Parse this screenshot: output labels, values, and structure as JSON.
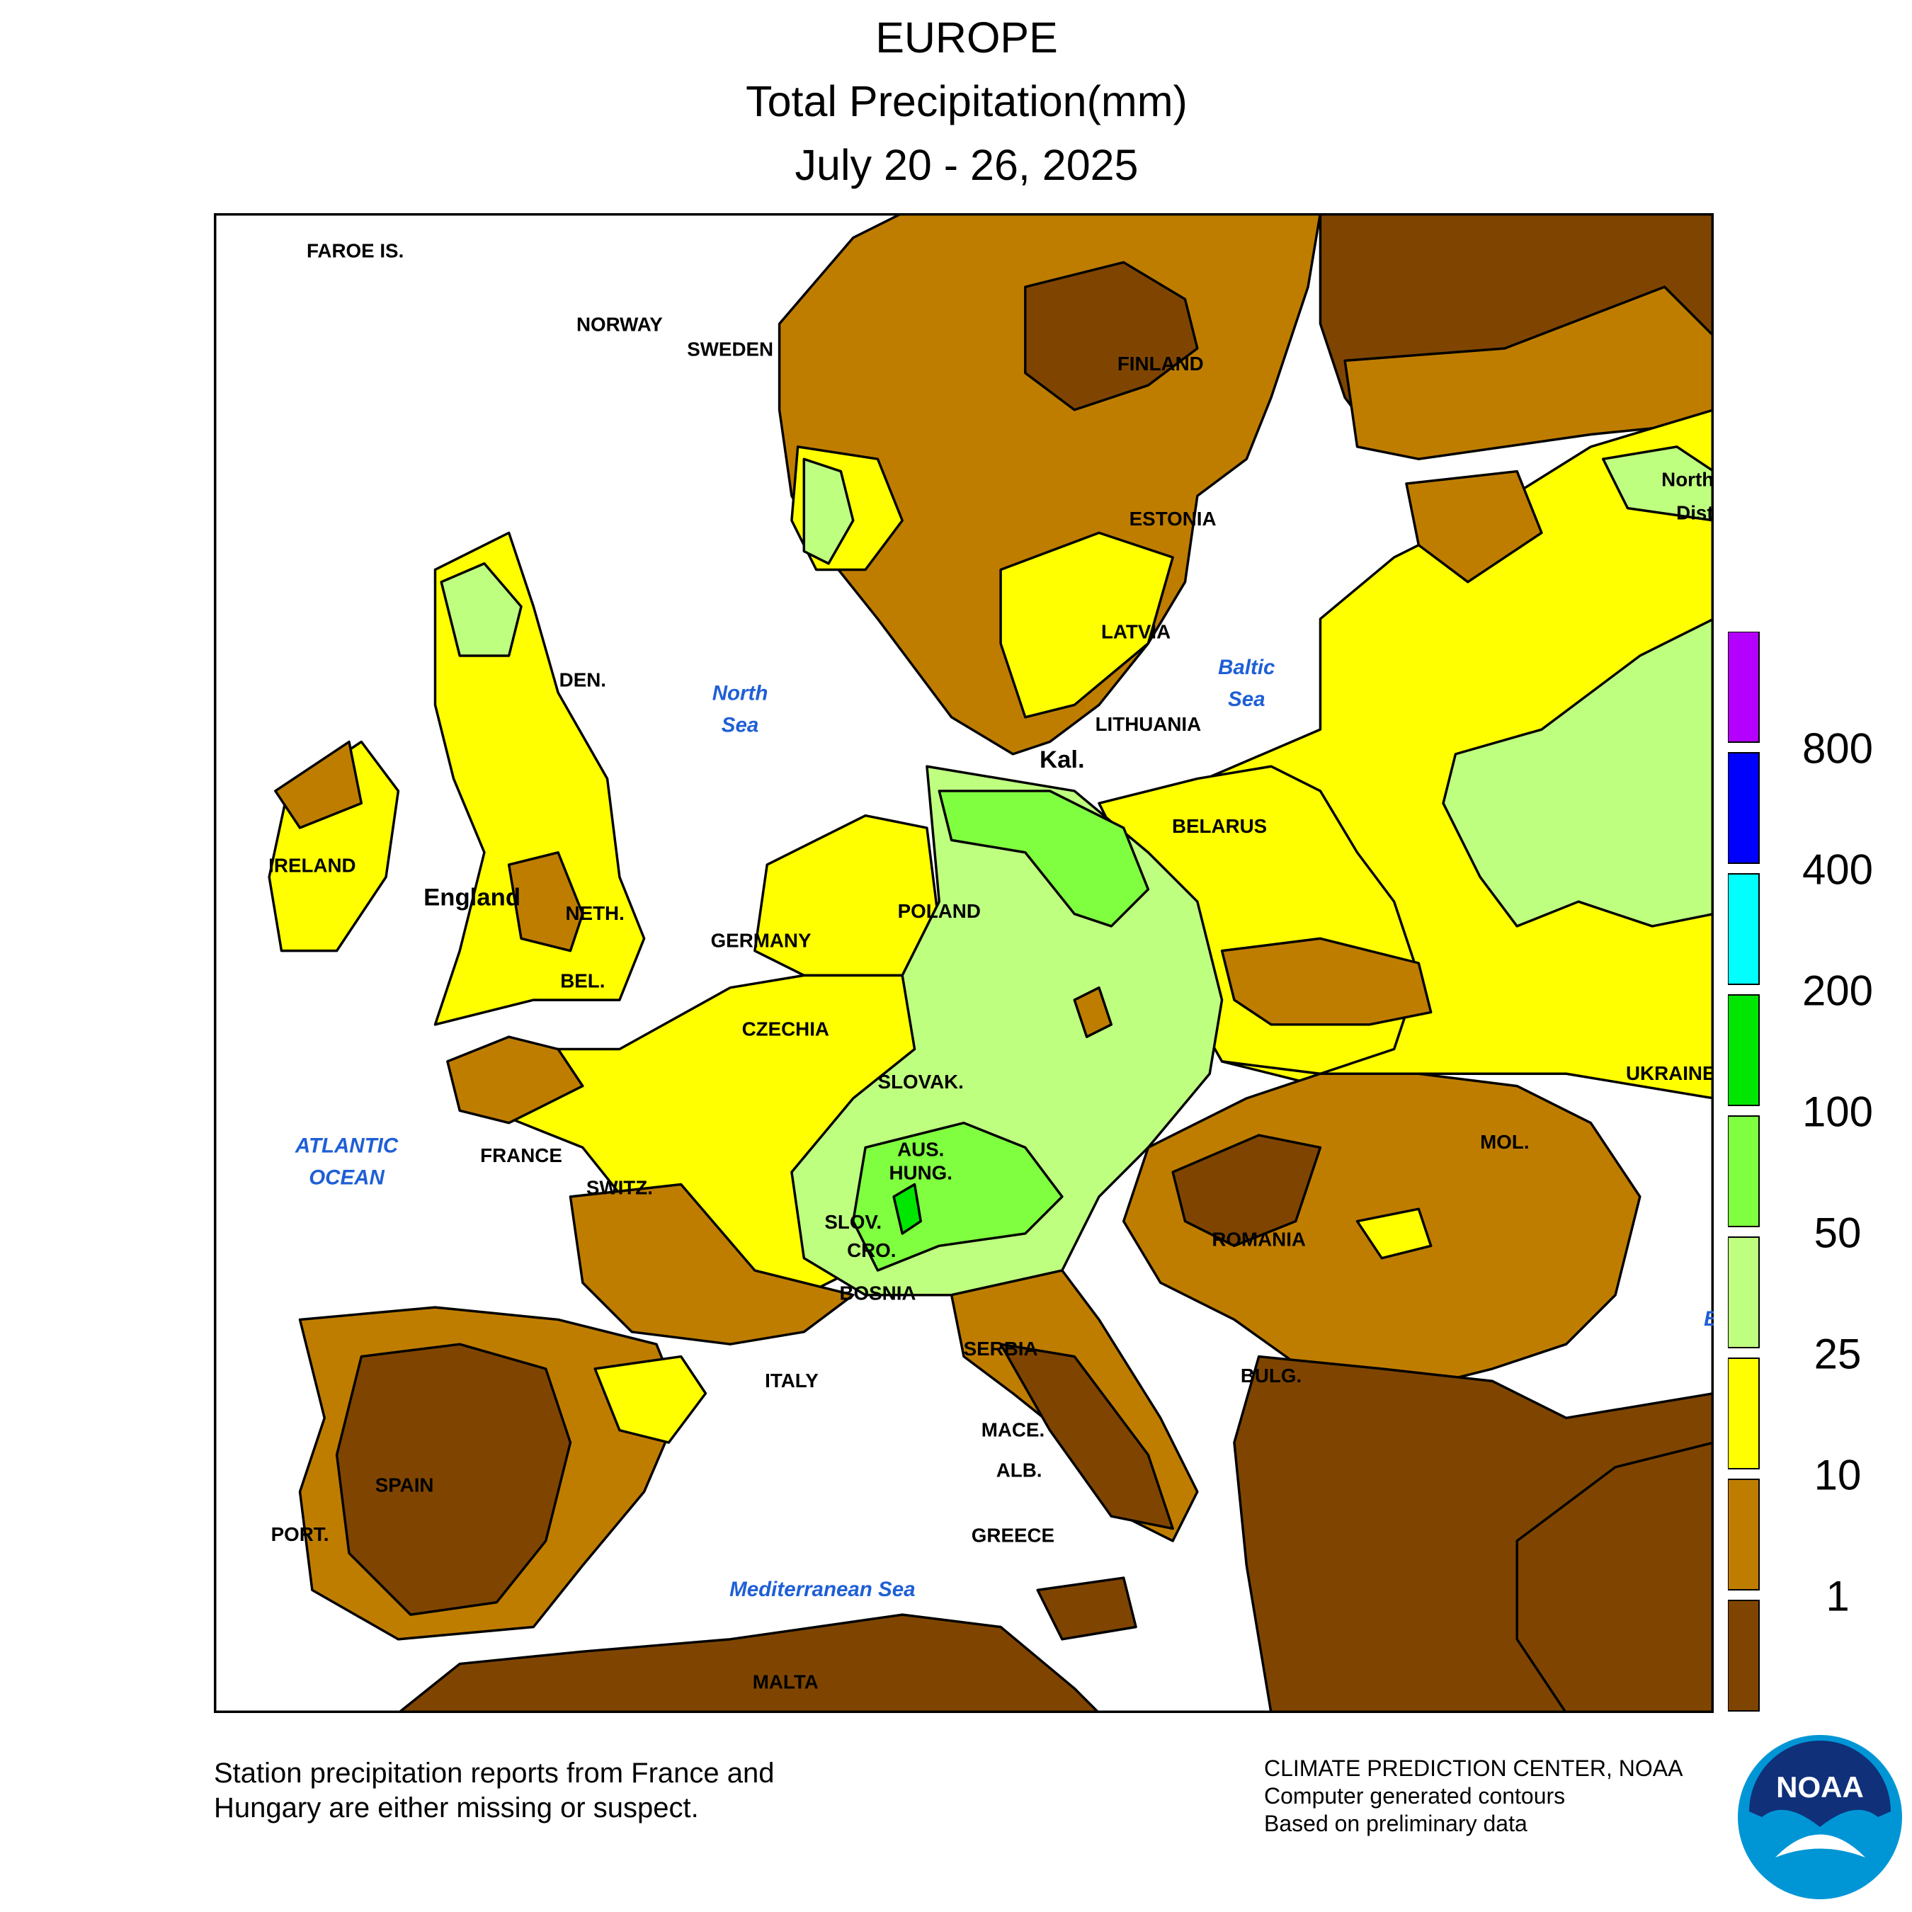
{
  "header": {
    "region": "EUROPE",
    "variable": "Total Precipitation(mm)",
    "period": "July 20 - 26, 2025"
  },
  "legend": {
    "colors": [
      "#7f4500",
      "#bf7d00",
      "#ffff00",
      "#bfff80",
      "#80ff40",
      "#00e600",
      "#00ffff",
      "#0000ff",
      "#b300ff"
    ],
    "labels": [
      "1",
      "10",
      "25",
      "50",
      "100",
      "200",
      "400",
      "800"
    ]
  },
  "map": {
    "water_labels": [
      {
        "id": "north-sea",
        "lines": [
          "North",
          "Sea"
        ]
      },
      {
        "id": "baltic-sea",
        "lines": [
          "Baltic",
          "Sea"
        ]
      },
      {
        "id": "atlantic-ocean",
        "lines": [
          "ATLANTIC",
          "OCEAN"
        ]
      },
      {
        "id": "mediterranean-sea",
        "lines": [
          "Mediterranean Sea"
        ]
      },
      {
        "id": "black-sea",
        "lines": [
          "B"
        ]
      }
    ],
    "country_labels": [
      "FAROE IS.",
      "NORWAY",
      "SWEDEN",
      "FINLAND",
      "ESTONIA",
      "Northw",
      "Distri",
      "LATVIA",
      "LITHUANIA",
      "Kal.",
      "BELARUS",
      "DEN.",
      "IRELAND",
      "England",
      "NETH.",
      "GERMANY",
      "POLAND",
      "BEL.",
      "CZECHIA",
      "SLOVAK.",
      "UKRAINE",
      "MOL.",
      "FRANCE",
      "AUS.",
      "HUNG.",
      "SWITZ.",
      "SLOV.",
      "CRO.",
      "ROMANIA",
      "BOSNIA",
      "SERBIA",
      "ITALY",
      "BULG.",
      "MACE.",
      "ALB.",
      "SPAIN",
      "PORT.",
      "GREECE",
      "MALTA"
    ]
  },
  "footer": {
    "note_line1": "Station precipitation reports from France and",
    "note_line2": "Hungary are either missing or suspect.",
    "credit_line1": "CLIMATE PREDICTION CENTER, NOAA",
    "credit_line2": "Computer generated contours",
    "credit_line3": "Based on preliminary data",
    "logo_text": "NOAA"
  }
}
